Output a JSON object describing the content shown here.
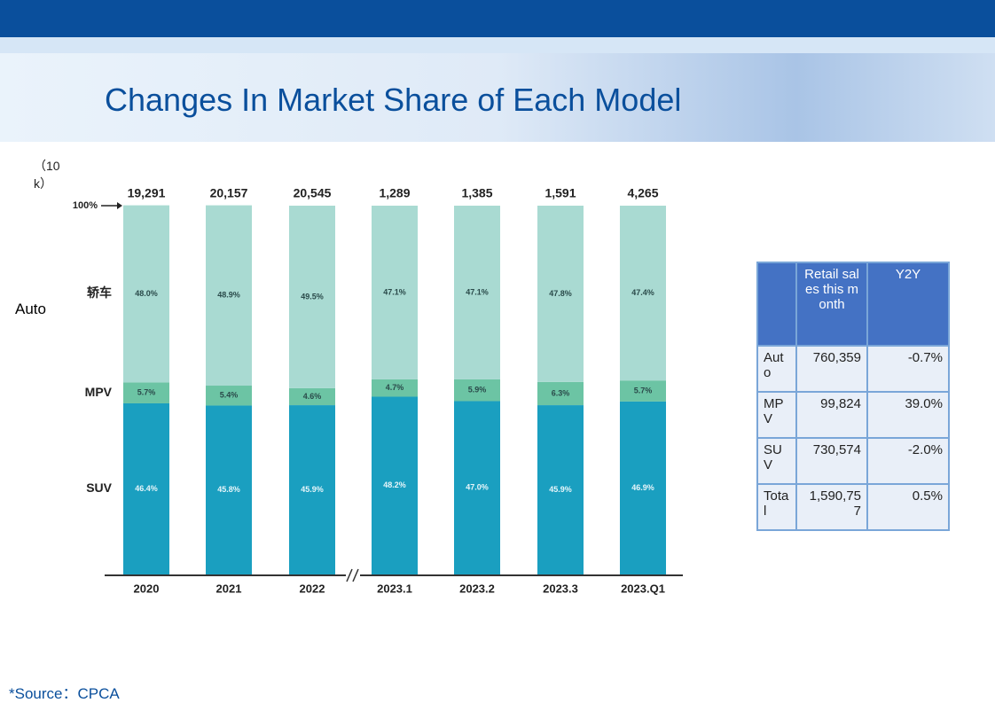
{
  "title": "Changes In Market Share of Each Model",
  "unit": "（10k）",
  "side_label": "Auto",
  "source": "*Source：CPCA",
  "chart_data": {
    "type": "stacked_bar",
    "categories": [
      "2020",
      "2021",
      "2022",
      "2023.1",
      "2023.2",
      "2023.3",
      "2023.Q1"
    ],
    "ylim": [
      0,
      100
    ],
    "yticks": [
      {
        "value": 100,
        "label": "100%"
      }
    ],
    "totals": {
      "values": [
        19291,
        20157,
        20545,
        1289,
        1385,
        1591,
        4265
      ],
      "value_labels": [
        "19,291",
        "20,157",
        "20,545",
        "1,289",
        "1,385",
        "1,591",
        "4,265"
      ]
    },
    "series": [
      {
        "name": "SUV",
        "color": "#1a9fc0",
        "values": [
          46.4,
          45.8,
          45.9,
          48.2,
          47.0,
          45.9,
          46.9
        ],
        "value_labels": [
          "46.4%",
          "45.8%",
          "45.9%",
          "48.2%",
          "47.0%",
          "45.9%",
          "46.9%"
        ]
      },
      {
        "name": "MPV",
        "color": "#6cc4a4",
        "values": [
          5.7,
          5.4,
          4.6,
          4.7,
          5.9,
          6.3,
          5.7
        ],
        "value_labels": [
          "5.7%",
          "5.4%",
          "4.6%",
          "4.7%",
          "5.9%",
          "6.3%",
          "5.7%"
        ]
      },
      {
        "name": "轿车",
        "color": "#a9dad2",
        "values": [
          48.0,
          48.9,
          49.5,
          47.1,
          47.1,
          47.8,
          47.4
        ],
        "value_labels": [
          "48.0%",
          "48.9%",
          "49.5%",
          "47.1%",
          "47.1%",
          "47.8%",
          "47.4%"
        ]
      }
    ]
  },
  "table": {
    "header": [
      "Retail sales this month",
      "Y2Y"
    ],
    "rows": [
      [
        "Auto",
        "760,359",
        "-0.7%"
      ],
      [
        "MPV",
        "99,824",
        "39.0%"
      ],
      [
        "SUV",
        "730,574",
        "-2.0%"
      ],
      [
        "Total",
        "1,590,757",
        "0.5%"
      ]
    ]
  }
}
